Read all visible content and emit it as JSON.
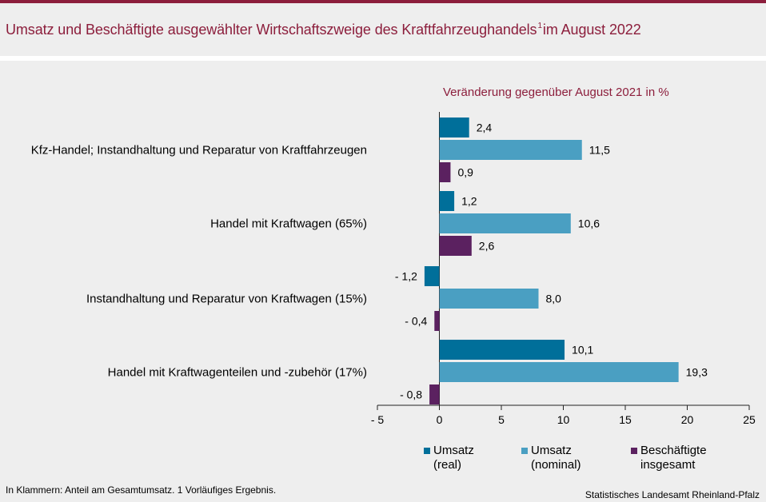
{
  "header": {
    "title_main": "Umsatz und Beschäftigte ausgewählter Wirtschaftszweige des Kraftfahrzeughandels",
    "title_sup": "1",
    "title_tail": "im August 2022"
  },
  "chart_subtitle": "Veränderung gegenüber August 2021 in %",
  "chart_data": {
    "type": "bar",
    "orientation": "horizontal",
    "categories": [
      "Kfz-Handel; Instandhaltung und Reparatur von Kraftfahrzeugen",
      "Handel mit Kraftwagen (65%)",
      "Instandhaltung und Reparatur von Kraftwagen (15%)",
      "Handel mit Kraftwagenteilen und -zubehör (17%)"
    ],
    "series": [
      {
        "name": "Umsatz (real)",
        "color": "#006f9a",
        "values": [
          2.4,
          1.2,
          -1.2,
          10.1
        ],
        "labels": [
          "2,4",
          "1,2",
          "- 1,2",
          "10,1"
        ]
      },
      {
        "name": "Umsatz (nominal)",
        "color": "#4a9fc2",
        "values": [
          11.5,
          10.6,
          8.0,
          19.3
        ],
        "labels": [
          "11,5",
          "10,6",
          "8,0",
          "19,3"
        ]
      },
      {
        "name": "Beschäftigte insgesamt",
        "color": "#5b2160",
        "values": [
          0.9,
          2.6,
          -0.4,
          -0.8
        ],
        "labels": [
          "0,9",
          "2,6",
          "- 0,4",
          "- 0,8"
        ]
      }
    ],
    "xlim": [
      -5,
      25
    ],
    "ticks": [
      -5,
      0,
      5,
      10,
      15,
      20,
      25
    ],
    "tick_labels": [
      "- 5",
      "0",
      "5",
      "10",
      "15",
      "20",
      "25"
    ],
    "legend_position": "bottom"
  },
  "legend": {
    "items": [
      {
        "label": "Umsatz\n(real)",
        "color": "#006f9a"
      },
      {
        "label": "Umsatz\n(nominal)",
        "color": "#4a9fc2"
      },
      {
        "label": "Beschäftigte\ninsgesamt",
        "color": "#5b2160"
      }
    ]
  },
  "footer": {
    "footnote": "In Klammern: Anteil am Gesamtumsatz. 1 Vorläufiges  Ergebnis.",
    "source": "Statistisches Landesamt Rheinland-Pfalz"
  }
}
